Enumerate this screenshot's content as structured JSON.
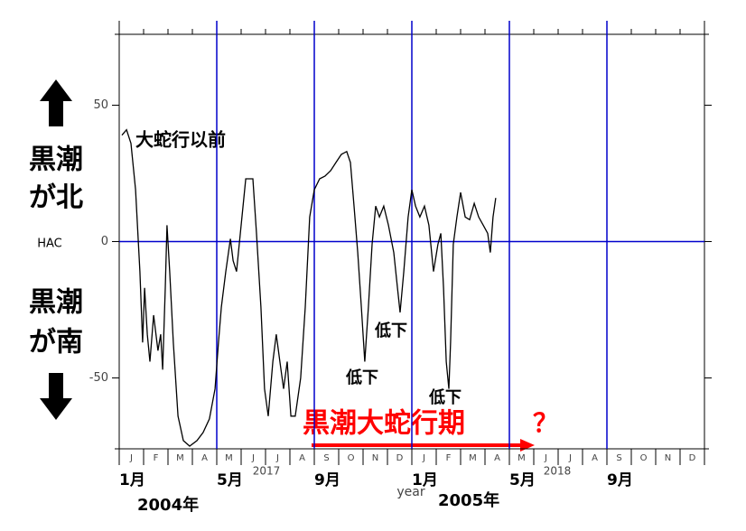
{
  "chart_data": {
    "type": "line",
    "y_label": "HAC",
    "x_label": "year",
    "xlim": [
      0,
      24
    ],
    "ylim": [
      -76,
      76
    ],
    "yticks": [
      -50,
      0,
      50
    ],
    "xticks": [
      {
        "value": 0,
        "label": "1月"
      },
      {
        "value": 4,
        "label": "5月"
      },
      {
        "value": 8,
        "label": "9月"
      },
      {
        "value": 12,
        "label": "1月"
      },
      {
        "value": 16,
        "label": "5月"
      },
      {
        "value": 20,
        "label": "9月"
      }
    ],
    "month_letters": [
      "J",
      "F",
      "M",
      "A",
      "M",
      "J",
      "J",
      "A",
      "S",
      "O",
      "N",
      "D",
      "J",
      "F",
      "M",
      "A",
      "M",
      "J",
      "J",
      "A",
      "S",
      "O",
      "N",
      "D"
    ],
    "year_labels": [
      "2017",
      "2018"
    ],
    "period_labels": [
      "2004年",
      "2005年"
    ],
    "north_label": [
      "黒潮",
      "が北"
    ],
    "south_label": [
      "黒潮",
      "が南"
    ],
    "annotations": [
      "大蛇行以前",
      "低下",
      "低下",
      "低下"
    ],
    "highlight": {
      "text": "黒潮大蛇行期",
      "mark": "？",
      "color": "#ff0000"
    },
    "grid_color": "#0000cc",
    "x": [
      0.11,
      0.3,
      0.48,
      0.67,
      0.85,
      0.96,
      1.04,
      1.15,
      1.26,
      1.41,
      1.59,
      1.7,
      1.78,
      1.89,
      1.96,
      2.07,
      2.22,
      2.41,
      2.63,
      2.89,
      3.19,
      3.44,
      3.7,
      3.93,
      4.07,
      4.19,
      4.37,
      4.56,
      4.67,
      4.81,
      5.0,
      5.19,
      5.33,
      5.48,
      5.63,
      5.81,
      5.96,
      6.11,
      6.3,
      6.44,
      6.59,
      6.74,
      6.89,
      7.04,
      7.22,
      7.44,
      7.63,
      7.81,
      8.0,
      8.22,
      8.44,
      8.67,
      8.89,
      9.11,
      9.33,
      9.48,
      9.63,
      9.78,
      9.93,
      10.07,
      10.22,
      10.37,
      10.52,
      10.67,
      10.85,
      11.04,
      11.26,
      11.41,
      11.52,
      11.67,
      11.85,
      12.0,
      12.15,
      12.33,
      12.52,
      12.7,
      12.89,
      13.07,
      13.19,
      13.3,
      13.41,
      13.52,
      13.59,
      13.7,
      13.85,
      14.0,
      14.19,
      14.37,
      14.56,
      14.74,
      14.93,
      15.11,
      15.22,
      15.33,
      15.44
    ],
    "series": [
      {
        "color": "#000000",
        "values": [
          39,
          41,
          36,
          19,
          -11,
          -37,
          -17,
          -34,
          -44,
          -27,
          -40,
          -34,
          -47,
          -17,
          6,
          -11,
          -37,
          -64,
          -73,
          -75,
          -73,
          -70,
          -65,
          -54,
          -37,
          -24,
          -11,
          1,
          -7,
          -11,
          6,
          23,
          23,
          23,
          3,
          -24,
          -54,
          -64,
          -44,
          -34,
          -44,
          -54,
          -44,
          -64,
          -64,
          -50,
          -24,
          9,
          19,
          23,
          24,
          26,
          29,
          32,
          33,
          29,
          13,
          -4,
          -24,
          -44,
          -24,
          -1,
          13,
          9,
          13,
          6,
          -4,
          -17,
          -26,
          -11,
          9,
          19,
          13,
          9,
          13,
          6,
          -11,
          -1,
          3,
          -17,
          -44,
          -54,
          -37,
          -1,
          9,
          18,
          9,
          8,
          14,
          9,
          6,
          3,
          -4,
          9,
          16
        ]
      }
    ]
  }
}
